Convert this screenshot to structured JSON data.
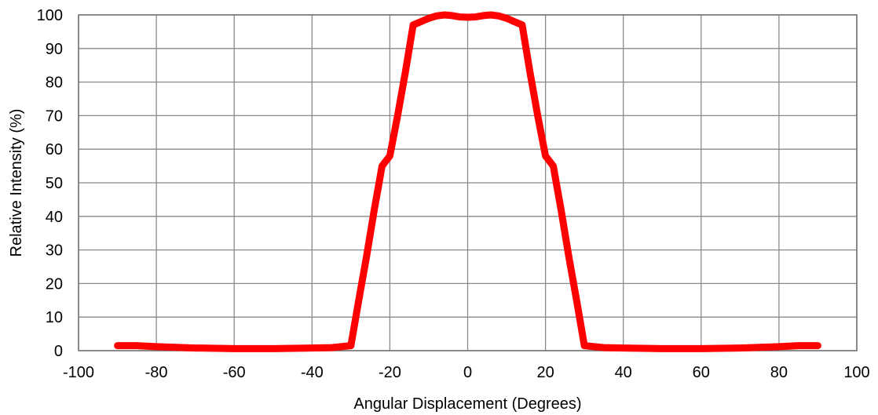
{
  "chart_data": {
    "type": "line",
    "title": "",
    "xlabel": "Angular Displacement (Degrees)",
    "ylabel": "Relative Intensity (%)",
    "xlim": [
      -100,
      100
    ],
    "ylim": [
      0,
      100
    ],
    "xticks": [
      -100,
      -80,
      -60,
      -40,
      -20,
      0,
      20,
      40,
      60,
      80,
      100
    ],
    "yticks": [
      0,
      10,
      20,
      30,
      40,
      50,
      60,
      70,
      80,
      90,
      100
    ],
    "grid": true,
    "legend": "none",
    "series": [
      {
        "color": "#ff0000",
        "x": [
          -90,
          -85,
          -80,
          -70,
          -60,
          -50,
          -40,
          -35,
          -30,
          -28,
          -26,
          -24,
          -22,
          -20,
          -18,
          -16,
          -14,
          -12,
          -10,
          -8,
          -6,
          -4,
          -2,
          0,
          2,
          4,
          6,
          8,
          10,
          12,
          14,
          16,
          18,
          20,
          22,
          24,
          26,
          28,
          30,
          35,
          40,
          50,
          60,
          70,
          80,
          85,
          90
        ],
        "y": [
          1.5,
          1.5,
          1.2,
          0.8,
          0.6,
          0.6,
          0.8,
          0.9,
          1.5,
          15,
          28,
          42,
          55,
          58,
          70,
          83,
          97,
          98,
          99,
          99.7,
          100,
          99.8,
          99.4,
          99.3,
          99.4,
          99.8,
          100,
          99.7,
          99,
          98,
          97,
          83,
          70,
          58,
          55,
          42,
          28,
          15,
          1.5,
          0.9,
          0.8,
          0.6,
          0.6,
          0.8,
          1.2,
          1.5,
          1.5
        ]
      }
    ]
  }
}
